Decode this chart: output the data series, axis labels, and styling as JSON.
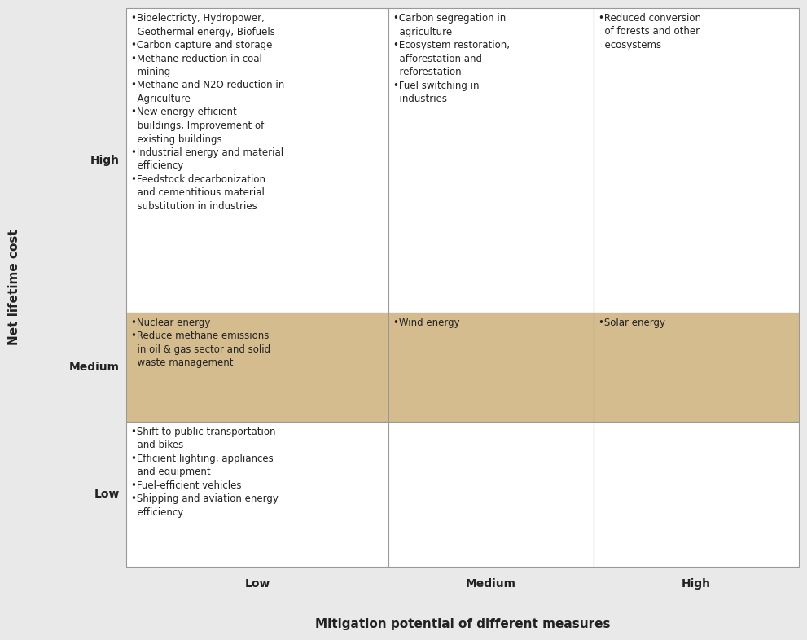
{
  "background_color": "#e9e9e9",
  "grid_bg_color": "#ffffff",
  "highlight_bg_color": "#d4bc8e",
  "border_color": "#999999",
  "text_color": "#222222",
  "ylabel": "Net lifetime cost",
  "xlabel": "Mitigation potential of different measures",
  "row_labels": [
    "High",
    "Medium",
    "Low"
  ],
  "col_labels": [
    "Low",
    "Medium",
    "High"
  ],
  "highlight_row": 1,
  "cells": {
    "0_0": "•Bioelectricty, Hydropower,\n  Geothermal energy, Biofuels\n•Carbon capture and storage\n•Methane reduction in coal\n  mining\n•Methane and N2O reduction in\n  Agriculture\n•New energy-efficient\n  buildings, Improvement of\n  existing buildings\n•Industrial energy and material\n  efficiency\n•Feedstock decarbonization\n  and cementitious material\n  substitution in industries",
    "0_1": "•Carbon segregation in\n  agriculture\n•Ecosystem restoration,\n  afforestation and\n  reforestation\n•Fuel switching in\n  industries",
    "0_2": "•Reduced conversion\n  of forests and other\n  ecosystems",
    "1_0": "•Nuclear energy\n•Reduce methane emissions\n  in oil & gas sector and solid\n  waste management",
    "1_1": "•Wind energy",
    "1_2": "•Solar energy",
    "2_0": "•Shift to public transportation\n  and bikes\n•Efficient lighting, appliances\n  and equipment\n•Fuel-efficient vehicles\n•Shipping and aviation energy\n  efficiency",
    "2_1": "–",
    "2_2": "–"
  },
  "font_size_cell": 8.5,
  "font_size_row_label": 10,
  "font_size_col_label": 10,
  "font_size_axis_title": 11
}
